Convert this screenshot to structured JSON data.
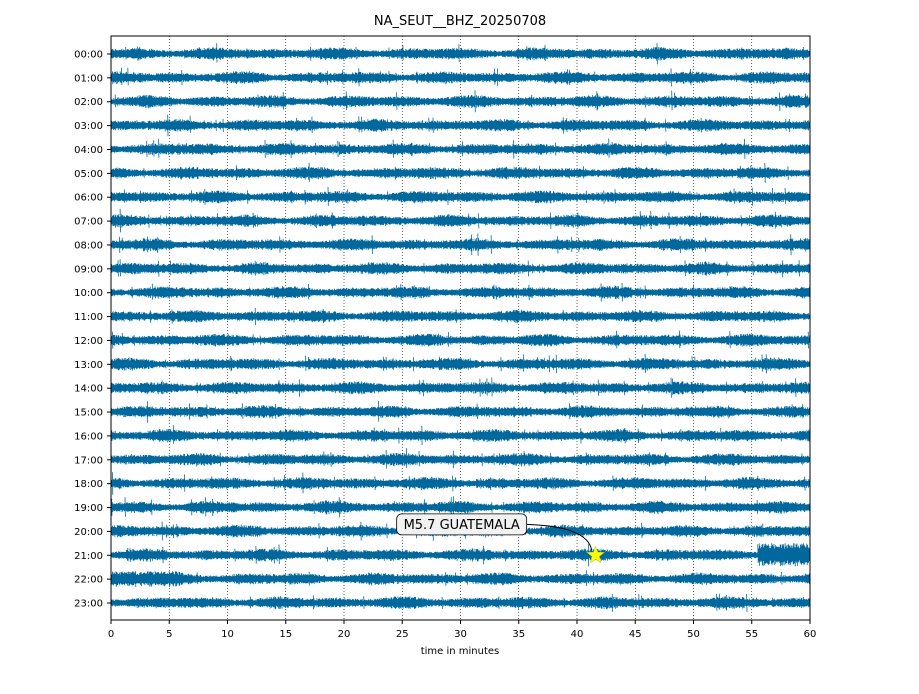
{
  "chart_data": {
    "type": "line",
    "title": "NA_SEUT__BHZ_20250708",
    "xlabel": "time in minutes",
    "ylabel": "",
    "xlim": [
      0,
      60
    ],
    "x_ticks": [
      "0",
      "5",
      "10",
      "15",
      "20",
      "25",
      "30",
      "35",
      "40",
      "45",
      "50",
      "55",
      "60"
    ],
    "x_tick_values": [
      0,
      5,
      10,
      15,
      20,
      25,
      30,
      35,
      40,
      45,
      50,
      55,
      60
    ],
    "vertical_grid": "dotted",
    "rows": [
      "00:00",
      "01:00",
      "02:00",
      "03:00",
      "04:00",
      "05:00",
      "06:00",
      "07:00",
      "08:00",
      "09:00",
      "10:00",
      "11:00",
      "12:00",
      "13:00",
      "14:00",
      "15:00",
      "16:00",
      "17:00",
      "18:00",
      "19:00",
      "20:00",
      "21:00",
      "22:00",
      "23:00"
    ],
    "trace_color": "#00689c",
    "event": {
      "label": "M5.7 GUATEMALA",
      "row": "21:00",
      "minute": 41.6,
      "marker_color": "#ffff00"
    }
  }
}
